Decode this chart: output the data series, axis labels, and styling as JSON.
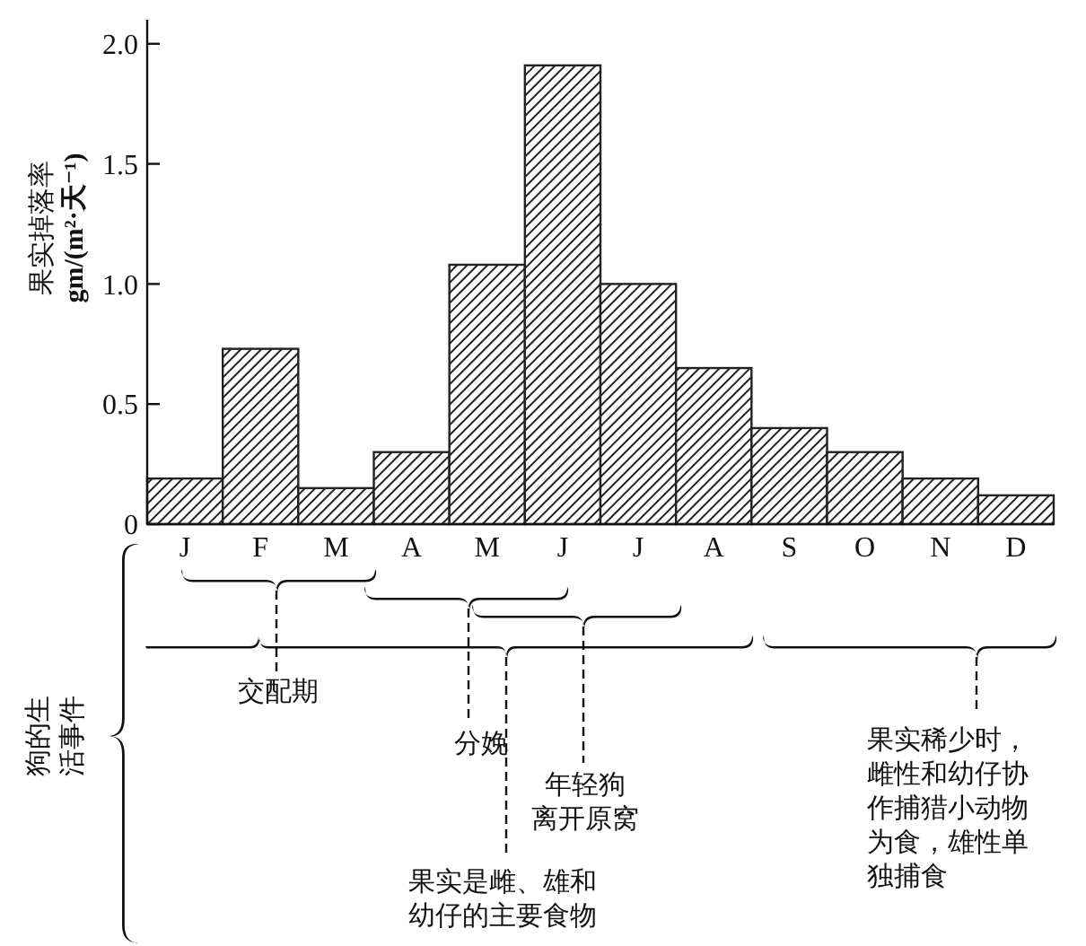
{
  "chart_data": {
    "type": "bar",
    "ylabel": "果实掉落率\ngm/(m²·天⁻¹)",
    "categories": [
      "J",
      "F",
      "M",
      "A",
      "M",
      "J",
      "J",
      "A",
      "S",
      "O",
      "N",
      "D"
    ],
    "values": [
      0.19,
      0.73,
      0.15,
      0.3,
      1.08,
      1.91,
      1.0,
      0.65,
      0.4,
      0.3,
      0.19,
      0.12
    ],
    "color": "#222222",
    "ylim": [
      0,
      2.1
    ],
    "yticks": [
      0,
      0.5,
      {
        "value": 1,
        "label": "1.0"
      },
      1.5,
      {
        "value": 2,
        "label": "2.0"
      }
    ],
    "annotations": [
      "狗的生活事件",
      "交配期",
      "分娩",
      "年轻狗离开原窝",
      "果实是雌、雄和幼仔的主要食物",
      "果实稀少时，雌性和幼仔协作捕猎小动物为食，雄性单独捕食"
    ]
  }
}
